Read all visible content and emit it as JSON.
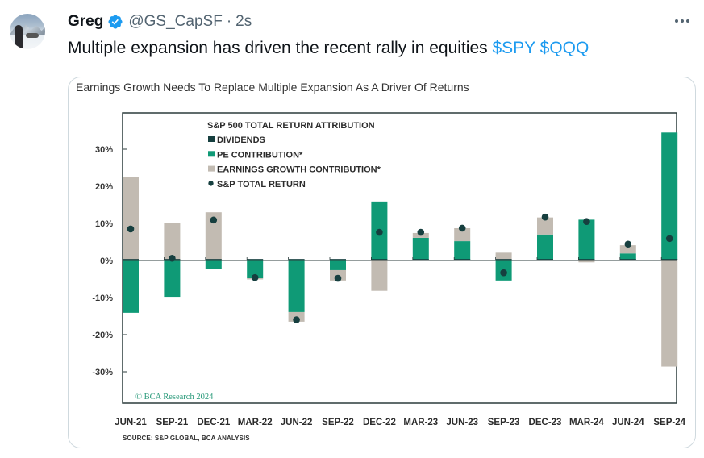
{
  "tweet": {
    "author_name": "Greg",
    "handle": "@GS_CapSF",
    "separator": "·",
    "time": "2s",
    "text": "Multiple expansion has driven the recent rally in equities",
    "cashtags": [
      "$SPY",
      "$QQQ"
    ],
    "verified": true,
    "icons": {
      "verified": "verified-badge-icon",
      "more": "more-options-icon"
    },
    "colors": {
      "link": "#1d9bf0",
      "text": "#0f1419",
      "secondary": "#536471"
    }
  },
  "card": {
    "title": "Earnings Growth Needs To Replace Multiple Expansion As A Driver Of Returns",
    "source": "SOURCE: S&P GLOBAL, BCA ANALYSIS",
    "watermark": "© BCA Research 2024"
  },
  "chart_data": {
    "type": "bar",
    "title": "S&P 500 TOTAL RETURN ATTRIBUTION",
    "xlabel": "",
    "ylabel": "",
    "ylim": [
      -38,
      40
    ],
    "yticks": [
      -30,
      -20,
      -10,
      0,
      10,
      20,
      30
    ],
    "ytick_labels": [
      "-30%",
      "-20%",
      "-10%",
      "0%",
      "10%",
      "20%",
      "30%"
    ],
    "categories": [
      "JUN-21",
      "SEP-21",
      "DEC-21",
      "MAR-22",
      "JUN-22",
      "SEP-22",
      "DEC-22",
      "MAR-23",
      "JUN-23",
      "SEP-23",
      "DEC-23",
      "MAR-24",
      "JUN-24",
      "SEP-24"
    ],
    "stacked": true,
    "legend_position": "top-left",
    "series": [
      {
        "name": "DIVIDENDS",
        "kind": "bar",
        "color": "#163f3f",
        "values": [
          0.4,
          0.4,
          0.4,
          0.4,
          0.4,
          0.4,
          0.4,
          0.4,
          0.4,
          0.4,
          0.4,
          0.4,
          0.4,
          0.4
        ]
      },
      {
        "name": "PE CONTRIBUTION*",
        "kind": "bar",
        "color": "#0f9a76",
        "values": [
          -14.1,
          -9.8,
          -2.2,
          -4.8,
          -13.9,
          -2.6,
          15.9,
          6.1,
          5.2,
          -5.4,
          7.0,
          11.0,
          1.9,
          34.5
        ]
      },
      {
        "name": "EARNINGS GROWTH CONTRIBUTION*",
        "kind": "bar",
        "color": "#c2bbb2",
        "values": [
          22.6,
          10.2,
          13.0,
          -0.3,
          -2.6,
          -2.8,
          -8.2,
          1.3,
          3.5,
          2.1,
          4.6,
          -0.5,
          2.2,
          -28.6
        ]
      },
      {
        "name": "S&P TOTAL RETURN",
        "kind": "dot",
        "color": "#163f3f",
        "values": [
          8.5,
          0.6,
          10.9,
          -4.6,
          -16.0,
          -4.8,
          7.6,
          7.6,
          8.7,
          -3.3,
          11.7,
          10.5,
          4.4,
          5.9
        ]
      }
    ]
  }
}
